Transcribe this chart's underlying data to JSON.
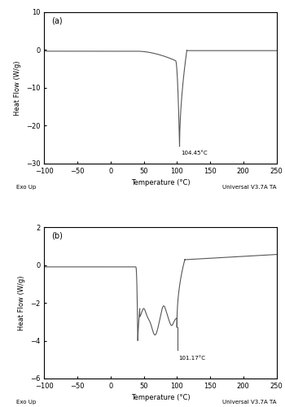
{
  "panel_a": {
    "label": "(a)",
    "xlim": [
      -100,
      250
    ],
    "ylim": [
      -30,
      10
    ],
    "yticks": [
      -30,
      -20,
      -10,
      0,
      10
    ],
    "xticks": [
      -100,
      -50,
      0,
      50,
      100,
      150,
      200,
      250
    ],
    "xlabel": "Temperature (°C)",
    "ylabel": "Heat Flow (W/g)",
    "annotation": "104.45°C",
    "exo_up": "Exo Up",
    "universal": "Universal V3.7A TA"
  },
  "panel_b": {
    "label": "(b)",
    "xlim": [
      -100,
      250
    ],
    "ylim": [
      -6,
      2
    ],
    "yticks": [
      -6,
      -4,
      -2,
      0,
      2
    ],
    "xticks": [
      -100,
      -50,
      0,
      50,
      100,
      150,
      200,
      250
    ],
    "xlabel": "Temperature (°C)",
    "ylabel": "Heat Flow (W/g)",
    "annotation": "101.17°C",
    "exo_up": "Exo Up",
    "universal": "Universal V3.7A TA"
  },
  "line_color": "#555555",
  "font_size": 6,
  "tick_font_size": 6
}
